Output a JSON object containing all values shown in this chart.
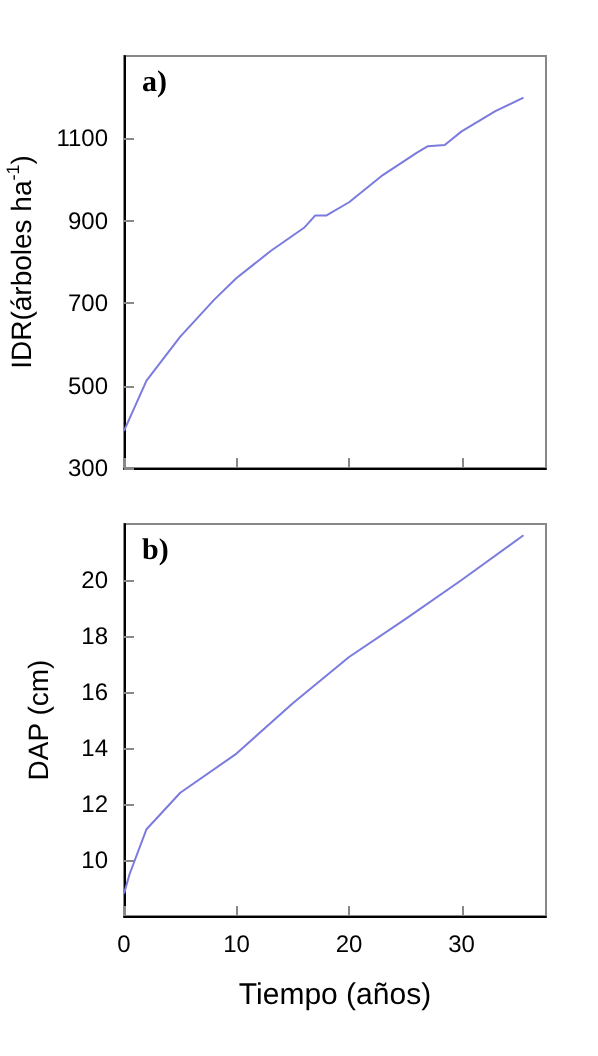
{
  "chart_data": [
    {
      "type": "line",
      "ylabel": "IDR(árboles ha$^{-1}$)",
      "annotations": [
        "a)"
      ],
      "x": [
        0,
        2,
        5,
        8,
        10,
        13,
        16,
        17,
        18,
        20,
        23,
        26,
        27,
        28.5,
        30,
        33,
        35.5
      ],
      "series": [
        {
          "color": "#7b7bdf",
          "values": [
            390,
            512,
            619,
            708,
            761,
            826,
            883,
            913,
            913,
            945,
            1011,
            1065,
            1081,
            1084,
            1117,
            1166,
            1199
          ]
        }
      ],
      "xlim": [
        0,
        37.5
      ],
      "xticks": [
        {
          "value": 0,
          "label": null
        },
        {
          "value": 10,
          "label": null
        },
        {
          "value": 20,
          "label": null
        },
        {
          "value": 30,
          "label": null
        }
      ],
      "ylim": [
        300,
        1300
      ],
      "yticks": [
        300,
        500,
        700,
        900,
        1100
      ],
      "tick_labels": "y",
      "grid": false,
      "marker": "none",
      "line_style": "solid"
    },
    {
      "type": "line",
      "ylabel": "DAP (cm)",
      "xlabel": "Tiempo (años)",
      "annotations": [
        "b)"
      ],
      "x": [
        0,
        0.5,
        2,
        5,
        10,
        15,
        20,
        25,
        30,
        35.5
      ],
      "series": [
        {
          "color": "#7b7bdf",
          "values": [
            8.8,
            9.5,
            11.1,
            12.4,
            13.8,
            15.6,
            17.25,
            18.6,
            20.0,
            21.6
          ]
        }
      ],
      "xlim": [
        0,
        37.5
      ],
      "xticks": [
        0,
        10,
        20,
        30
      ],
      "ylim": [
        8,
        22
      ],
      "yticks": [
        10,
        12,
        14,
        16,
        18,
        20
      ],
      "grid": false,
      "marker": "none",
      "line_style": "solid"
    }
  ]
}
